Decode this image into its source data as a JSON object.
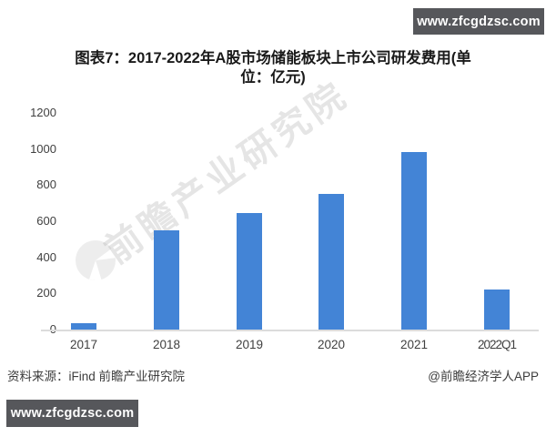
{
  "page": {
    "top_badge": "www.zfcgdzsc.com",
    "bottom_badge": "www.zfcgdzsc.com",
    "badge_bg": "#56575b"
  },
  "title": {
    "line1": "图表7：2017-2022年A股市场储能板块上市公司研发费用(单",
    "line2": "位：亿元)"
  },
  "watermark": {
    "text": "前瞻产业研究院"
  },
  "footer": {
    "source": "资料来源：iFind 前瞻产业研究院",
    "credit": "@前瞻经济学人APP"
  },
  "chart_data": {
    "type": "bar",
    "title": "图表7：2017-2022年A股市场储能板块上市公司研发费用(单位：亿元)",
    "unit": "亿元",
    "categories": [
      "2017",
      "2018",
      "2019",
      "2020",
      "2021",
      "2022Q1"
    ],
    "values": [
      40,
      555,
      650,
      755,
      990,
      228
    ],
    "xlabel": "",
    "ylabel": "",
    "ylim": [
      0,
      1200
    ],
    "yticks": [
      0,
      200,
      400,
      600,
      800,
      1000,
      1200
    ],
    "grid": false,
    "legend": "none",
    "bar_color": "#4384d6"
  }
}
